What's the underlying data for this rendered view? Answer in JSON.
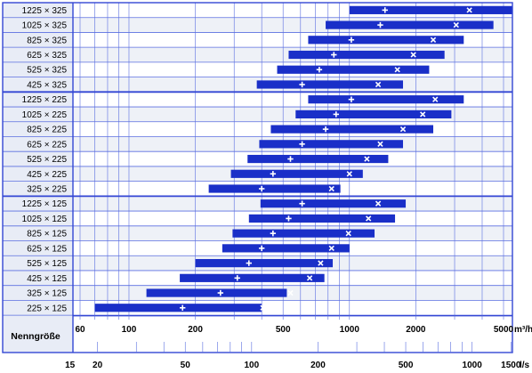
{
  "chart_data": {
    "type": "bar",
    "subtype": "floating-range",
    "x_scale": "log",
    "xlim_m3h": [
      50,
      5800
    ],
    "axis_label": "Nenngröße",
    "unit_m3h": "m³/h",
    "unit_ls": "l/s",
    "ticks_m3h": [
      "60",
      "100",
      "200",
      "500",
      "1000",
      "2000",
      "5000"
    ],
    "tick_values_m3h": [
      60,
      100,
      200,
      500,
      1000,
      2000,
      5000
    ],
    "ticks_ls": [
      "15",
      "20",
      "50",
      "100",
      "200",
      "500",
      "1000",
      "1500"
    ],
    "tick_values_ls": [
      15,
      20,
      50,
      100,
      200,
      500,
      1000,
      1500
    ],
    "categories": [
      "1225 × 325",
      "1025 × 325",
      "825 × 325",
      "625 × 325",
      "525 × 325",
      "425 × 325",
      "1225 × 225",
      "1025 × 225",
      "825 × 225",
      "625 × 225",
      "525 × 225",
      "425 × 225",
      "325 × 225",
      "1225 × 125",
      "1025 × 125",
      "825 × 125",
      "625 × 125",
      "525 × 125",
      "425 × 125",
      "325 × 125",
      "225 × 125"
    ],
    "group_sizes": [
      6,
      7,
      8
    ],
    "ranges_m3h": [
      [
        1000,
        5500
      ],
      [
        780,
        4500
      ],
      [
        650,
        3300
      ],
      [
        530,
        2700
      ],
      [
        470,
        2300
      ],
      [
        380,
        1750
      ],
      [
        650,
        3300
      ],
      [
        570,
        2900
      ],
      [
        440,
        2400
      ],
      [
        390,
        1750
      ],
      [
        345,
        1500
      ],
      [
        290,
        1150
      ],
      [
        230,
        910
      ],
      [
        395,
        1800
      ],
      [
        350,
        1610
      ],
      [
        295,
        1300
      ],
      [
        265,
        1000
      ],
      [
        200,
        840
      ],
      [
        170,
        770
      ],
      [
        120,
        520
      ],
      [
        70,
        400
      ]
    ],
    "plus_m3h": [
      1450,
      1380,
      1020,
      850,
      730,
      610,
      1020,
      870,
      780,
      610,
      540,
      450,
      400,
      610,
      530,
      450,
      400,
      350,
      310,
      260,
      175
    ],
    "cross_m3h": [
      3500,
      3050,
      2400,
      1950,
      1650,
      1350,
      2450,
      2150,
      1750,
      1380,
      1200,
      1000,
      830,
      1350,
      1220,
      990,
      830,
      740,
      660,
      540,
      405
    ],
    "colors": {
      "bar": "#1a2fc8",
      "grid": "#5a6ee0",
      "frame": "#3346d4",
      "label_bg": "#e8ecf6",
      "row_alt": "#eef1f7",
      "text": "#000000"
    }
  }
}
